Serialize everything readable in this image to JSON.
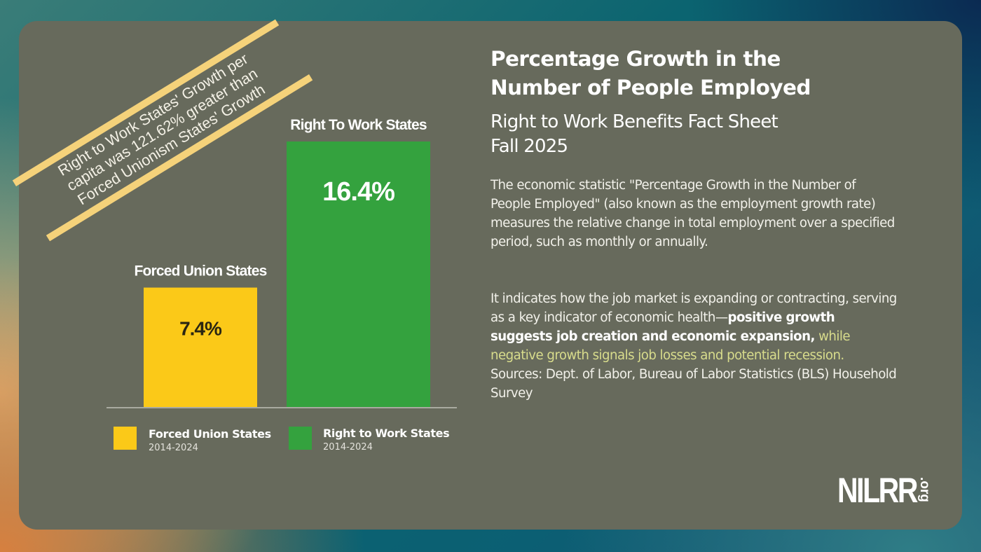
{
  "callout": {
    "lines": [
      "Right to Work States' Growth per",
      "capita was 121.62% greater than",
      "Forced Unionism States' Growth"
    ],
    "ribbon_color": "#f5d27a"
  },
  "header": {
    "title_line1": "Percentage Growth in the",
    "title_line2": "Number of People Employed",
    "subtitle_line1": "Right to Work Benefits Fact Sheet",
    "subtitle_line2": "Fall 2025"
  },
  "body": {
    "paragraph1": "The economic statistic \"Percentage Growth in the Number of People Employed\" (also known as the employment growth rate) measures the relative change in total employment over a specified period, such as monthly or annually.",
    "paragraph2_plain": "It indicates how the job market is expanding or contracting, serving as a key indicator of economic health—",
    "paragraph2_bold": "positive growth suggests job creation and economic expansion,",
    "paragraph2_highlight": " while negative growth signals job losses and potential recession.",
    "paragraph2_sources": " Sources: Dept. of Labor, Bureau of Labor Statistics (BLS) Household Survey"
  },
  "logo": {
    "text": "NILRR",
    "suffix": ".org"
  },
  "chart_data": {
    "type": "bar",
    "title": "Percentage Growth in the Number of People Employed",
    "categories": [
      "Forced Union States",
      "Right To Work States"
    ],
    "values": [
      7.4,
      16.4
    ],
    "value_labels": [
      "7.4%",
      "16.4%"
    ],
    "unit": "%",
    "colors": [
      "#fbc918",
      "#34a23e"
    ],
    "value_label_colors": [
      "#2a2612",
      "#ffffff"
    ],
    "ylim": [
      0,
      16.4
    ],
    "grid": false,
    "legend_position": "bottom",
    "legend": [
      {
        "label": "Forced Union States",
        "sub": "2014-2024",
        "color": "#fbc918"
      },
      {
        "label": "Right to Work States",
        "sub": "2014-2024",
        "color": "#34a23e"
      }
    ]
  }
}
